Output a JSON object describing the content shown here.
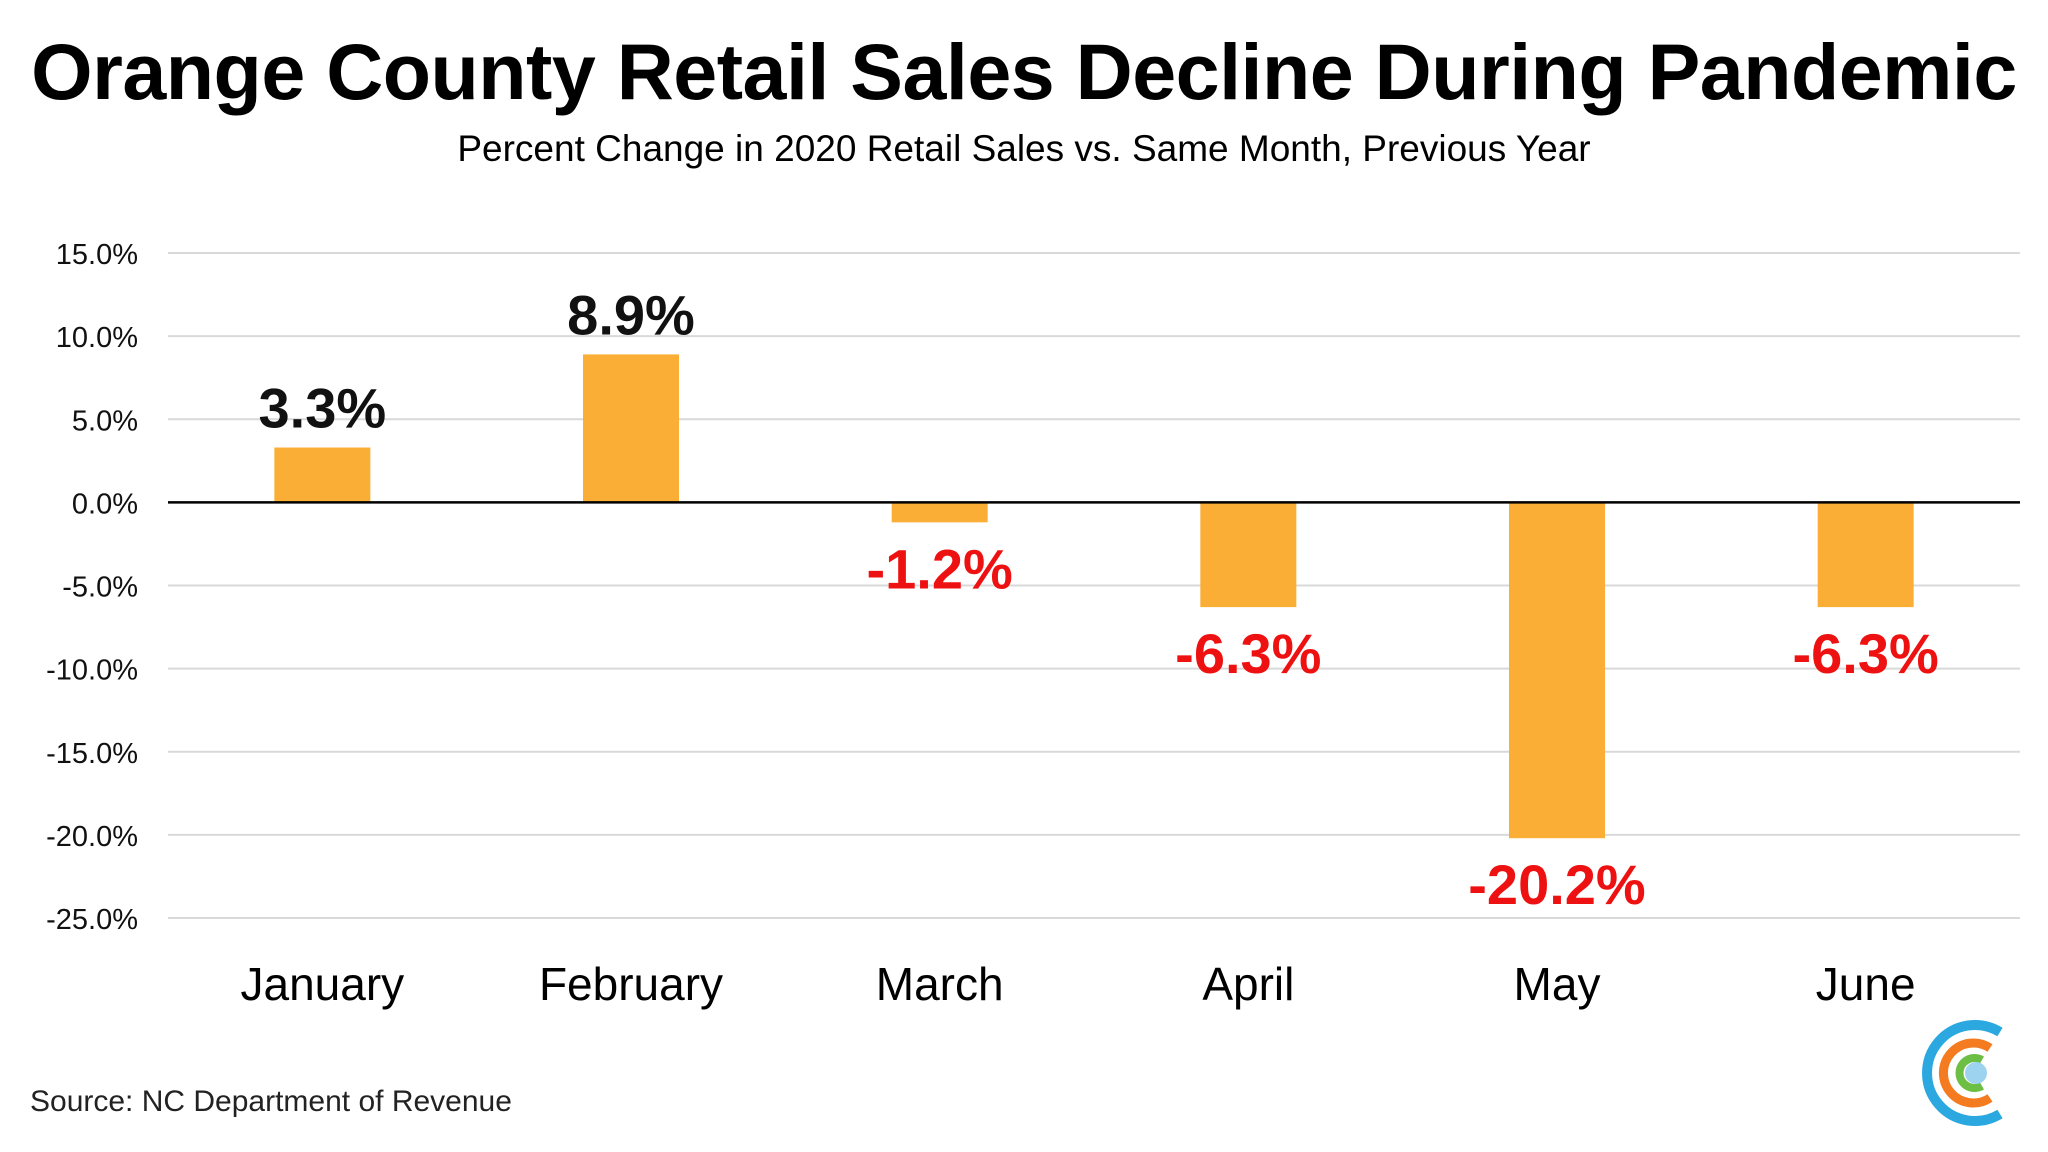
{
  "chart_data": {
    "type": "bar",
    "title": "Orange County Retail Sales Decline During Pandemic",
    "subtitle": "Percent Change in 2020 Retail Sales vs. Same Month, Previous Year",
    "categories": [
      "January",
      "February",
      "March",
      "April",
      "May",
      "June"
    ],
    "values": [
      3.3,
      8.9,
      -1.2,
      -6.3,
      -20.2,
      -6.3
    ],
    "data_labels": [
      "3.3%",
      "8.9%",
      "-1.2%",
      "-6.3%",
      "-20.2%",
      "-6.3%"
    ],
    "xlabel": "",
    "ylabel": "",
    "ylim": [
      -25,
      15
    ],
    "yticks": [
      15,
      10,
      5,
      0,
      -5,
      -10,
      -15,
      -20,
      -25
    ],
    "ytick_labels": [
      "15.0%",
      "10.0%",
      "5.0%",
      "0.0%",
      "-5.0%",
      "-10.0%",
      "-15.0%",
      "-20.0%",
      "-25.0%"
    ],
    "grid": true,
    "legend": "none",
    "colors": {
      "bar": "#FBAE35",
      "positive_label": "#111111",
      "negative_label": "#EE1111",
      "gridline": "#D9D9D9",
      "zero_line": "#000000"
    }
  },
  "footer": {
    "source": "Source: NC Department of Revenue",
    "logo_icon": "concentric-c-logo-icon",
    "logo_colors": [
      "#2BA8E0",
      "#F47B20",
      "#6DBE45",
      "#9ED3F0"
    ]
  }
}
